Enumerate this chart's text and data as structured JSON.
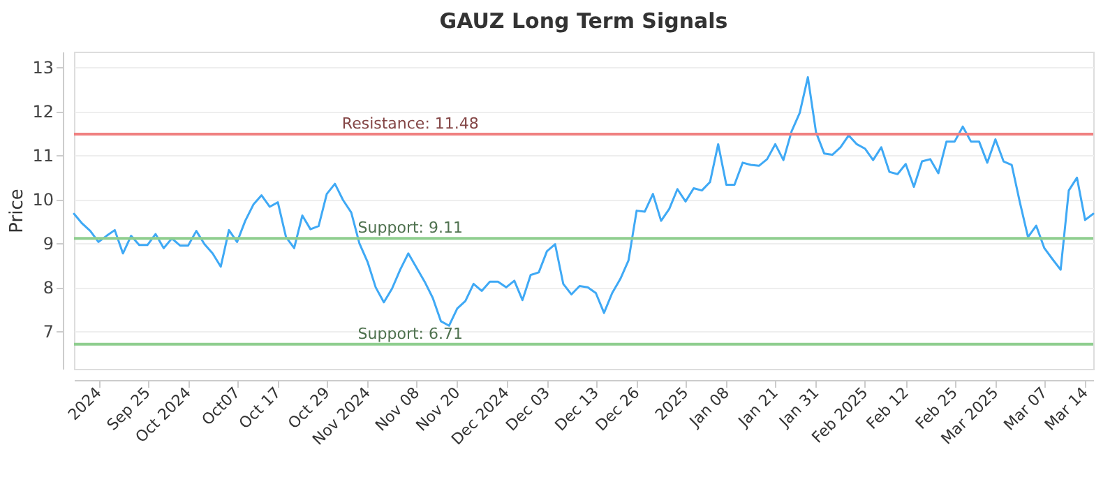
{
  "chart_data": {
    "type": "line",
    "title": "GAUZ Long Term Signals",
    "ylabel": "Price",
    "categories": [
      null,
      null,
      null,
      "2024",
      null,
      null,
      null,
      null,
      null,
      "Sep 25",
      null,
      null,
      null,
      null,
      "Oct 2024",
      null,
      null,
      null,
      null,
      null,
      "Oct07",
      null,
      null,
      null,
      null,
      "Oct 17",
      null,
      null,
      null,
      null,
      null,
      "Oct 29",
      null,
      null,
      null,
      null,
      "Nov 2024",
      null,
      null,
      null,
      null,
      null,
      "Nov 08",
      null,
      null,
      null,
      null,
      "Nov 20",
      null,
      null,
      null,
      null,
      null,
      "Dec 2024",
      null,
      null,
      null,
      null,
      "Dec 03",
      null,
      null,
      null,
      null,
      null,
      "Dec 13",
      null,
      null,
      null,
      null,
      "Dec 26",
      null,
      null,
      null,
      null,
      null,
      "2025",
      null,
      null,
      null,
      null,
      "Jan 08",
      null,
      null,
      null,
      null,
      null,
      "Jan 21",
      null,
      null,
      null,
      null,
      "Jan 31",
      null,
      null,
      null,
      null,
      null,
      "Feb 2025",
      null,
      null,
      null,
      null,
      "Feb 12",
      null,
      null,
      null,
      null,
      null,
      "Feb 25",
      null,
      null,
      null,
      null,
      "Mar 2025",
      null,
      null,
      null,
      null,
      null,
      "Mar 07",
      null,
      null,
      null,
      null,
      "Mar 14",
      null
    ],
    "series": [
      {
        "color": "#3fa9f5",
        "values": [
          9.67,
          9.45,
          9.28,
          9.03,
          9.17,
          9.3,
          8.77,
          9.17,
          8.96,
          8.96,
          9.21,
          8.89,
          9.11,
          8.95,
          8.95,
          9.28,
          8.98,
          8.77,
          8.47,
          9.3,
          9.03,
          9.51,
          9.88,
          10.09,
          9.83,
          9.93,
          9.14,
          8.89,
          9.63,
          9.32,
          9.39,
          10.12,
          10.35,
          9.98,
          9.7,
          9.0,
          8.58,
          8.0,
          7.66,
          7.97,
          8.4,
          8.77,
          8.45,
          8.13,
          7.76,
          7.23,
          7.13,
          7.52,
          7.69,
          8.08,
          7.92,
          8.13,
          8.13,
          8.0,
          8.15,
          7.71,
          8.28,
          8.34,
          8.82,
          8.98,
          8.08,
          7.84,
          8.03,
          8.0,
          7.87,
          7.42,
          7.87,
          8.19,
          8.61,
          9.74,
          9.72,
          10.12,
          9.51,
          9.78,
          10.23,
          9.95,
          10.25,
          10.2,
          10.39,
          11.25,
          10.33,
          10.33,
          10.83,
          10.78,
          10.76,
          10.91,
          11.25,
          10.89,
          11.54,
          11.96,
          12.77,
          11.52,
          11.04,
          11.01,
          11.18,
          11.45,
          11.25,
          11.15,
          10.89,
          11.18,
          10.62,
          10.57,
          10.8,
          10.28,
          10.86,
          10.91,
          10.59,
          11.31,
          11.31,
          11.65,
          11.31,
          11.31,
          10.83,
          11.36,
          10.86,
          10.78,
          9.93,
          9.14,
          9.4,
          8.89,
          8.64,
          8.4,
          10.2,
          10.49,
          9.53,
          9.67
        ]
      }
    ],
    "ylim": [
      6.15,
      13.35
    ],
    "yticks": [
      7,
      8,
      9,
      10,
      11,
      12,
      13
    ],
    "grid": "y",
    "ref_lines": [
      {
        "axis": "y",
        "value": 11.48,
        "label": "Resistance: 11.48",
        "color": "#f08080"
      },
      {
        "axis": "y",
        "value": 9.11,
        "label": "Support: 9.11",
        "color": "#8fce8f"
      },
      {
        "axis": "y",
        "value": 6.71,
        "label": "Support: 6.71",
        "color": "#8fce8f"
      }
    ]
  }
}
